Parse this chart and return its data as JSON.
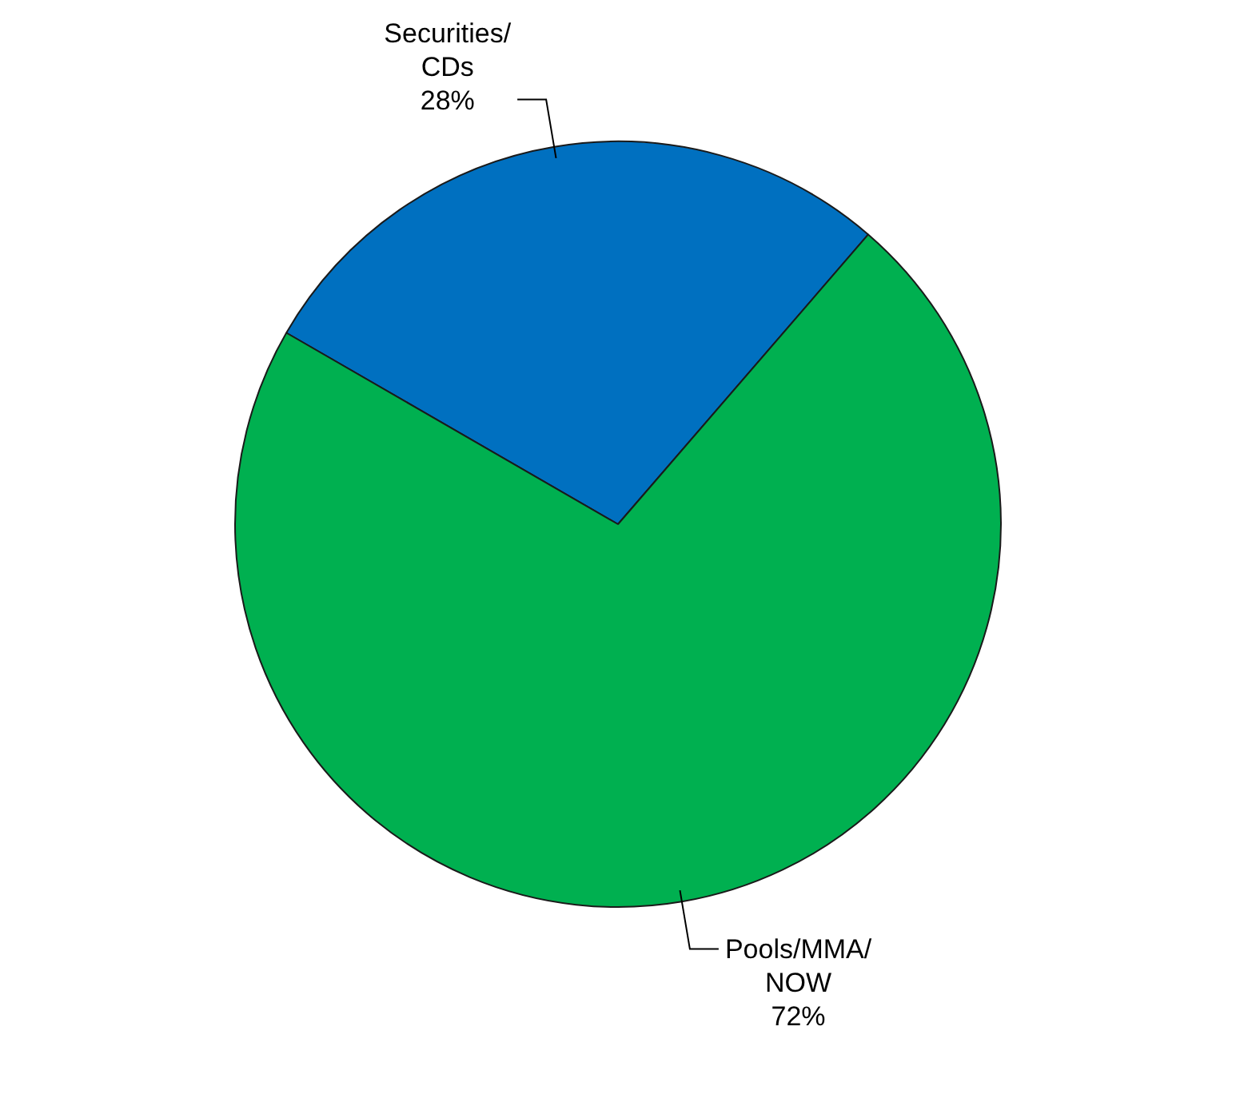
{
  "chart_data": {
    "type": "pie",
    "categories": [
      "Securities/CDs",
      "Pools/MMA/NOW"
    ],
    "values": [
      28,
      72
    ],
    "value_labels": [
      "28%",
      "72%"
    ],
    "colors": [
      "#0070c0",
      "#00b050"
    ],
    "legend": false
  }
}
